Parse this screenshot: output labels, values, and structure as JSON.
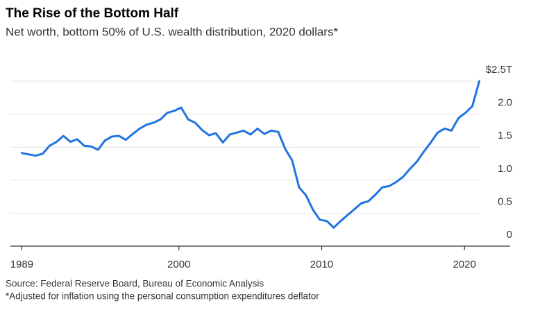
{
  "chart_data": {
    "type": "line",
    "title": "The Rise of the Bottom Half",
    "subtitle": "Net worth, bottom 50% of U.S. wealth distribution, 2020 dollars*",
    "source": "Source: Federal Reserve Board, Bureau of Economic Analysis",
    "footnote": "*Adjusted for inflation using the personal consumption expenditures deflator",
    "x": [
      1989.0,
      1989.49,
      1989.97,
      1990.46,
      1990.94,
      1991.43,
      1991.91,
      1992.4,
      1992.88,
      1993.37,
      1993.85,
      1994.34,
      1994.82,
      1995.31,
      1995.8,
      1996.28,
      1996.77,
      1997.25,
      1997.74,
      1998.22,
      1998.71,
      1999.19,
      1999.68,
      2000.16,
      2000.65,
      2001.14,
      2001.62,
      2002.11,
      2002.59,
      2003.08,
      2003.56,
      2004.05,
      2004.53,
      2005.02,
      2005.5,
      2005.99,
      2006.47,
      2006.96,
      2007.45,
      2007.93,
      2008.42,
      2008.9,
      2009.39,
      2009.87,
      2010.36,
      2010.84,
      2011.33,
      2011.81,
      2012.3,
      2012.78,
      2013.27,
      2013.76,
      2014.24,
      2014.73,
      2015.21,
      2015.7,
      2016.18,
      2016.67,
      2017.15,
      2017.64,
      2018.12,
      2018.61,
      2019.09,
      2019.58,
      2020.07,
      2020.55,
      2021.04
    ],
    "series": [
      {
        "color": "#1f74e0",
        "values": [
          1.41,
          1.39,
          1.37,
          1.4,
          1.52,
          1.58,
          1.67,
          1.58,
          1.62,
          1.52,
          1.51,
          1.46,
          1.6,
          1.66,
          1.67,
          1.61,
          1.7,
          1.78,
          1.84,
          1.87,
          1.92,
          2.02,
          2.05,
          2.1,
          1.92,
          1.87,
          1.76,
          1.68,
          1.71,
          1.57,
          1.69,
          1.72,
          1.75,
          1.69,
          1.78,
          1.7,
          1.75,
          1.73,
          1.47,
          1.3,
          0.89,
          0.77,
          0.55,
          0.4,
          0.38,
          0.28,
          0.38,
          0.47,
          0.56,
          0.65,
          0.68,
          0.78,
          0.89,
          0.91,
          0.97,
          1.05,
          1.17,
          1.28,
          1.43,
          1.57,
          1.72,
          1.78,
          1.75,
          1.94,
          2.02,
          2.12,
          2.5
        ]
      }
    ],
    "xlim": [
      1988.2,
      2023.2
    ],
    "xticks": [
      1989,
      2000,
      2010,
      2020
    ],
    "ylim": [
      0,
      2.5
    ],
    "yticks": [
      0,
      0.5,
      {
        "value": 1,
        "label": "1.0"
      },
      1.5,
      {
        "value": 2,
        "label": "2.0"
      },
      {
        "value": 2.5,
        "label": "$2.5T"
      }
    ],
    "grid": true
  }
}
